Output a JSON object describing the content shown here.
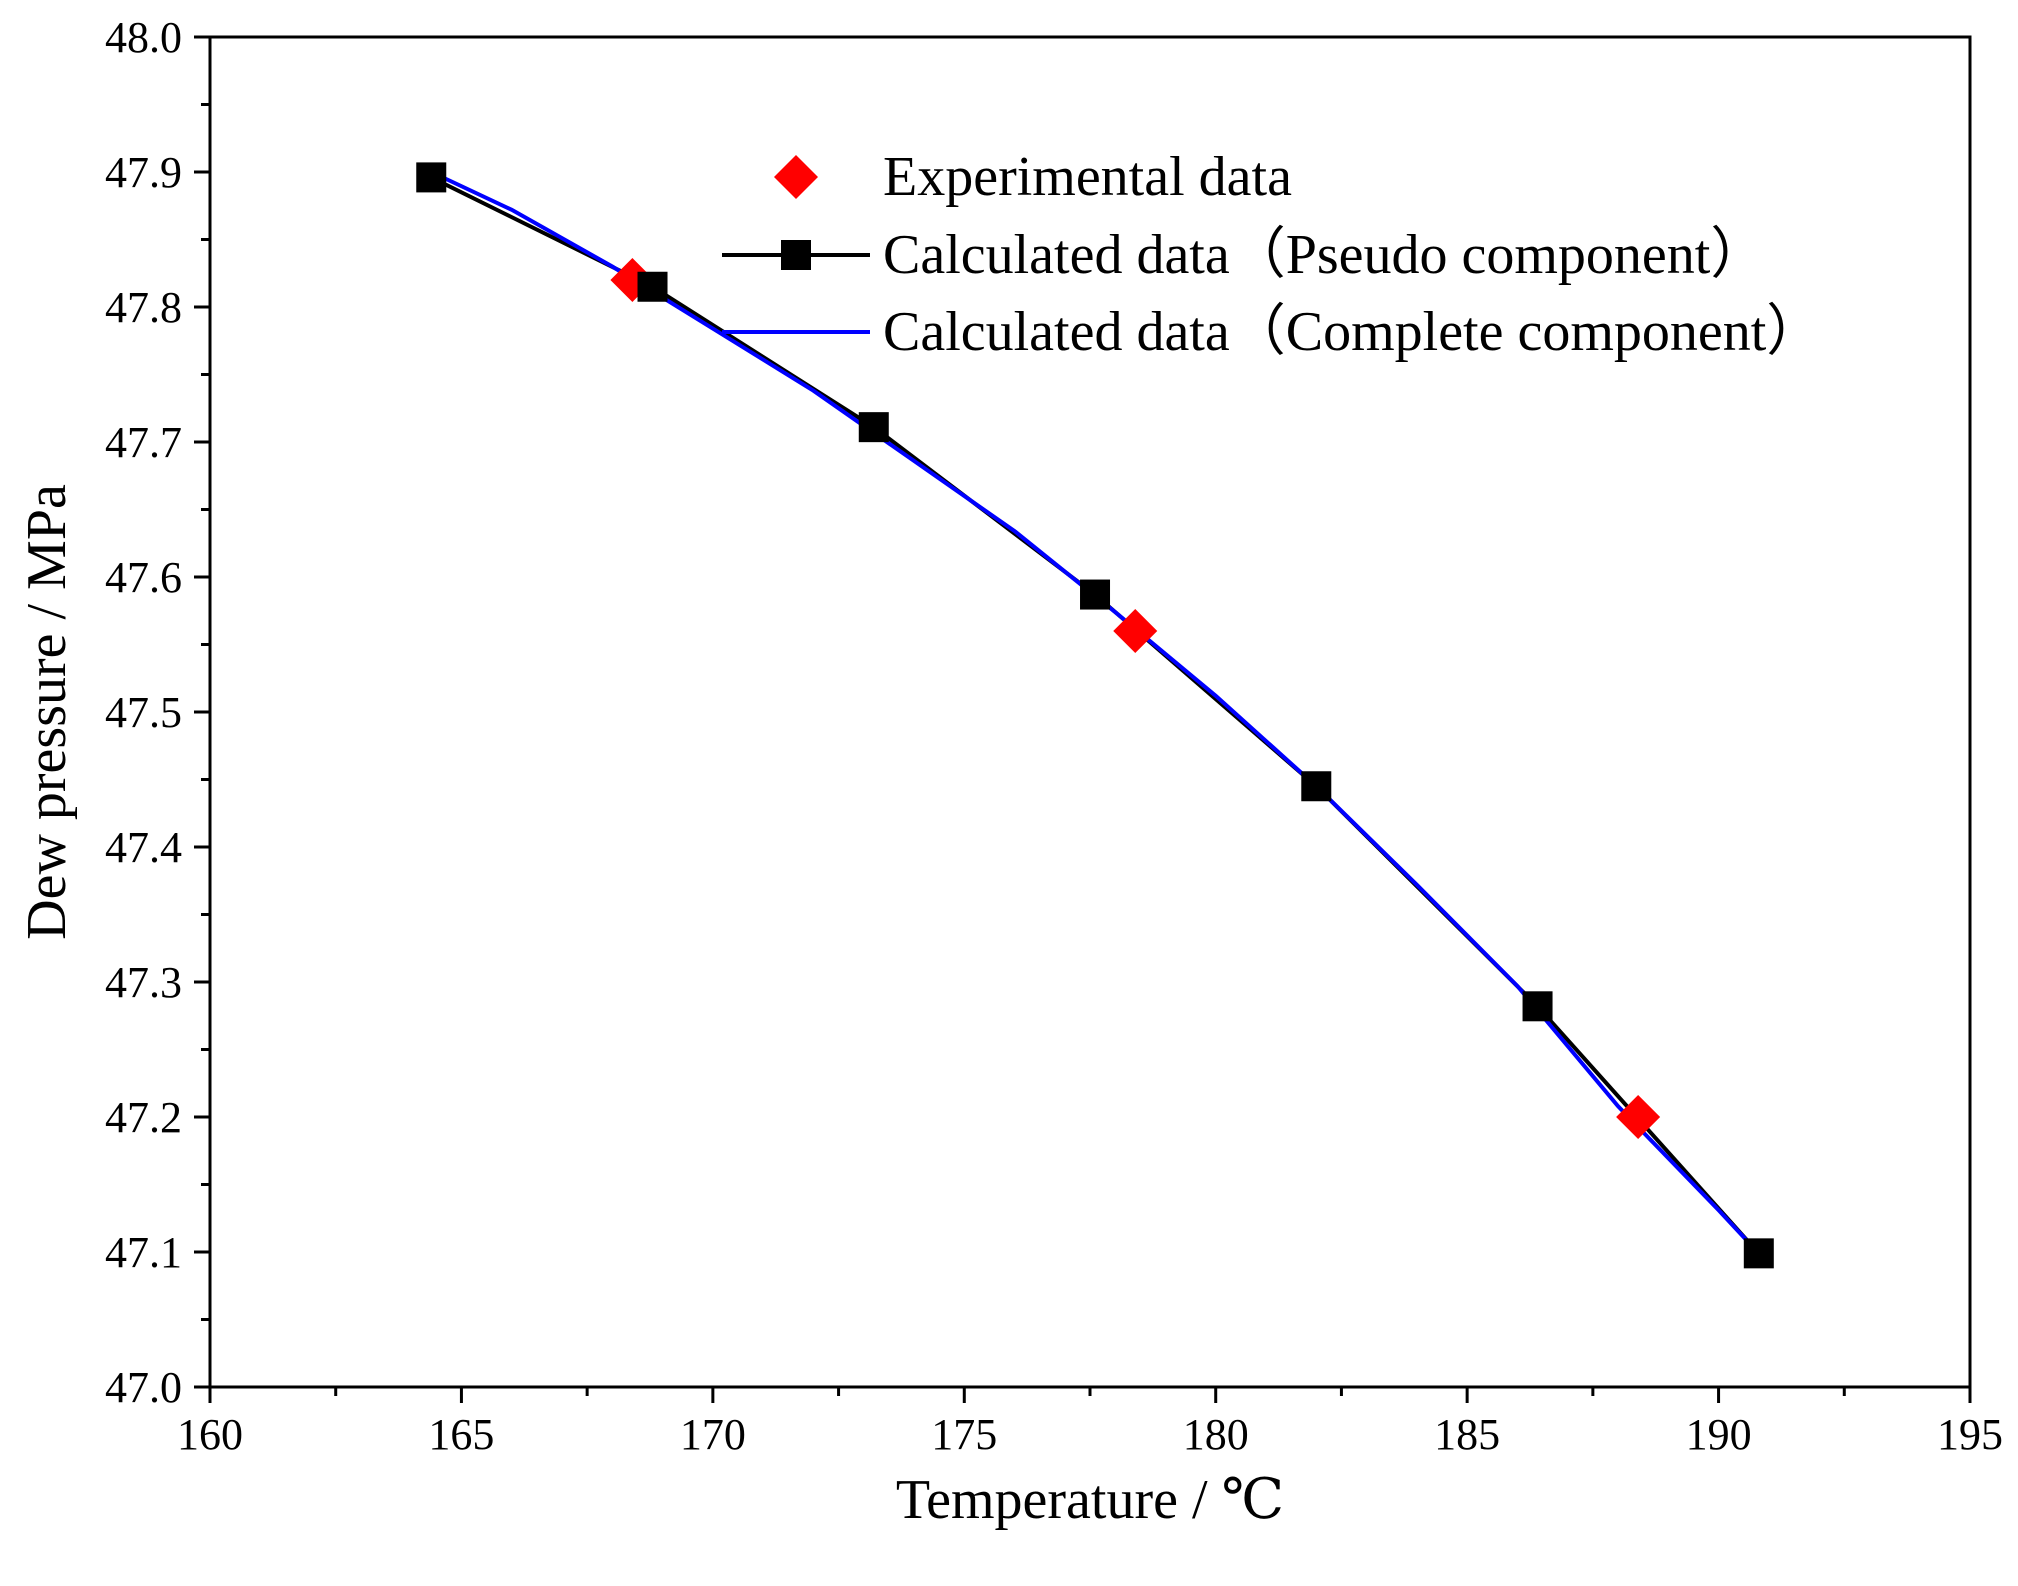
{
  "chart_data": {
    "type": "line",
    "xlabel": "Temperature / ℃",
    "ylabel": "Dew pressure / MPa",
    "xlim": [
      160,
      195
    ],
    "ylim": [
      47.0,
      48.0
    ],
    "xticks": [
      "160",
      "165",
      "170",
      "175",
      "180",
      "185",
      "190",
      "195"
    ],
    "yticks": [
      "47.0",
      "47.1",
      "47.2",
      "47.3",
      "47.4",
      "47.5",
      "47.6",
      "47.7",
      "47.8",
      "47.9",
      "48.0"
    ],
    "grid": false,
    "legend_position": "top-right",
    "series": [
      {
        "name": "Experimental data",
        "marker": "diamond",
        "line": false,
        "color": "#ff0000",
        "x": [
          168.4,
          178.4,
          188.4
        ],
        "y": [
          47.82,
          47.56,
          47.2
        ]
      },
      {
        "name": "Calculated data（Pseudo component）",
        "marker": "square",
        "line": true,
        "color": "#000000",
        "x": [
          164.4,
          168.8,
          173.2,
          177.6,
          182.0,
          186.4,
          190.8
        ],
        "y": [
          47.896,
          47.815,
          47.711,
          47.587,
          47.445,
          47.282,
          47.099
        ]
      },
      {
        "name": "Calculated data（Complete component）",
        "marker": "none",
        "line": true,
        "color": "#0000ff",
        "x": [
          164.4,
          166.0,
          168.0,
          170.0,
          172.0,
          174.0,
          176.0,
          178.0,
          180.0,
          182.0,
          184.0,
          186.0,
          188.0,
          190.0,
          190.8
        ],
        "y": [
          47.9,
          47.872,
          47.83,
          47.784,
          47.738,
          47.686,
          47.634,
          47.574,
          47.512,
          47.445,
          47.372,
          47.297,
          47.208,
          47.131,
          47.099
        ]
      }
    ]
  }
}
